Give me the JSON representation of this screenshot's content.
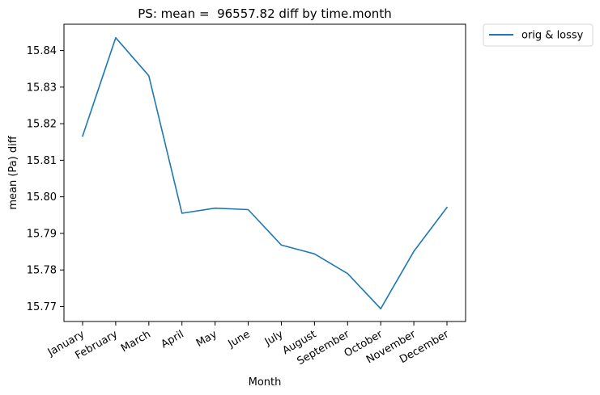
{
  "chart_data": {
    "type": "line",
    "title": "PS: mean =  96557.82 diff by time.month",
    "xlabel": "Month",
    "ylabel": "mean (Pa) diff",
    "categories": [
      "January",
      "February",
      "March",
      "April",
      "May",
      "June",
      "July",
      "August",
      "September",
      "October",
      "November",
      "December"
    ],
    "series": [
      {
        "name": "orig & lossy",
        "color": "#1f77b4",
        "values": [
          15.8166,
          15.8435,
          15.8331,
          15.7955,
          15.7969,
          15.7965,
          15.7868,
          15.7844,
          15.779,
          15.7694,
          15.7851,
          15.7971
        ]
      }
    ],
    "yticks": [
      15.77,
      15.78,
      15.79,
      15.8,
      15.81,
      15.82,
      15.83,
      15.84
    ],
    "ytick_labels": [
      "15.77",
      "15.78",
      "15.79",
      "15.80",
      "15.81",
      "15.82",
      "15.83",
      "15.84"
    ],
    "ylim": [
      15.7659,
      15.8472
    ],
    "grid": false,
    "legend_position": "outside top-right"
  }
}
